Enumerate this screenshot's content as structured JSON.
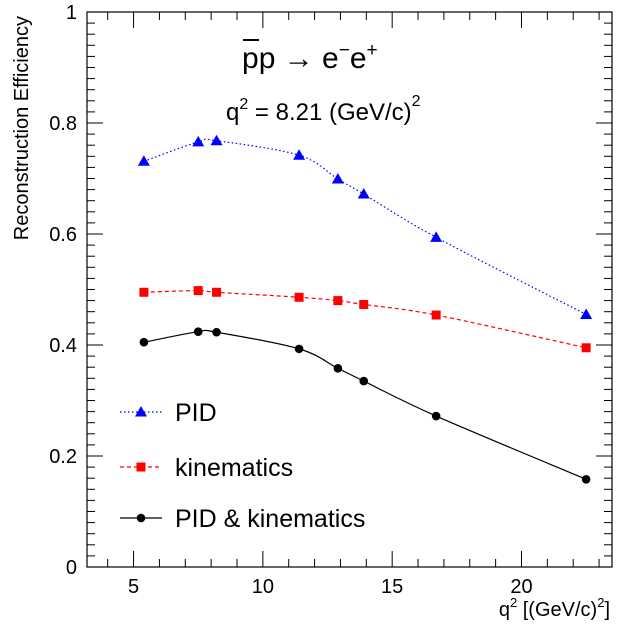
{
  "chart_data": {
    "type": "line",
    "title_line1_bar": "p",
    "title_line1_rest": "p → e",
    "title_line1_sup1": "−",
    "title_line1_mid": "e",
    "title_line1_sup2": "+",
    "title_line2_q": "q",
    "title_line2_sup": "2",
    "title_line2_rest": " = 8.21 (GeV/c)",
    "title_line2_sup2": "2",
    "xlabel_main": "q",
    "xlabel_sup": "2",
    "xlabel_rest": "  [(GeV/c)",
    "xlabel_sup2": "2",
    "xlabel_end": "]",
    "ylabel": "Reconstruction Efficiency",
    "xlim": [
      3.2,
      23.5
    ],
    "ylim": [
      0,
      1
    ],
    "xticks": [
      5,
      10,
      15,
      20
    ],
    "xtick_labels": [
      "5",
      "10",
      "15",
      "20"
    ],
    "yticks": [
      0,
      0.2,
      0.4,
      0.6,
      0.8,
      1
    ],
    "ytick_labels": [
      "0",
      "0.2",
      "0.4",
      "0.6",
      "0.8",
      "1"
    ],
    "grid": false,
    "legend_position": "bottom-left",
    "series": [
      {
        "name": "PID",
        "color": "#0000ff",
        "marker": "triangle",
        "line_style": "dotted",
        "x": [
          5.4,
          7.5,
          8.21,
          11.4,
          12.9,
          13.9,
          16.7,
          22.5
        ],
        "y": [
          0.731,
          0.766,
          0.768,
          0.742,
          0.699,
          0.672,
          0.594,
          0.455
        ]
      },
      {
        "name": "kinematics",
        "color": "#ff0000",
        "marker": "square",
        "line_style": "dashed",
        "x": [
          5.4,
          7.5,
          8.21,
          11.4,
          12.9,
          13.9,
          16.7,
          22.5
        ],
        "y": [
          0.495,
          0.498,
          0.495,
          0.486,
          0.48,
          0.473,
          0.454,
          0.395
        ]
      },
      {
        "name": "PID & kinematics",
        "color": "#000000",
        "marker": "circle",
        "line_style": "solid",
        "x": [
          5.4,
          7.5,
          8.21,
          11.4,
          12.9,
          13.9,
          16.7,
          22.5
        ],
        "y": [
          0.405,
          0.424,
          0.423,
          0.393,
          0.358,
          0.335,
          0.272,
          0.158
        ]
      }
    ]
  }
}
